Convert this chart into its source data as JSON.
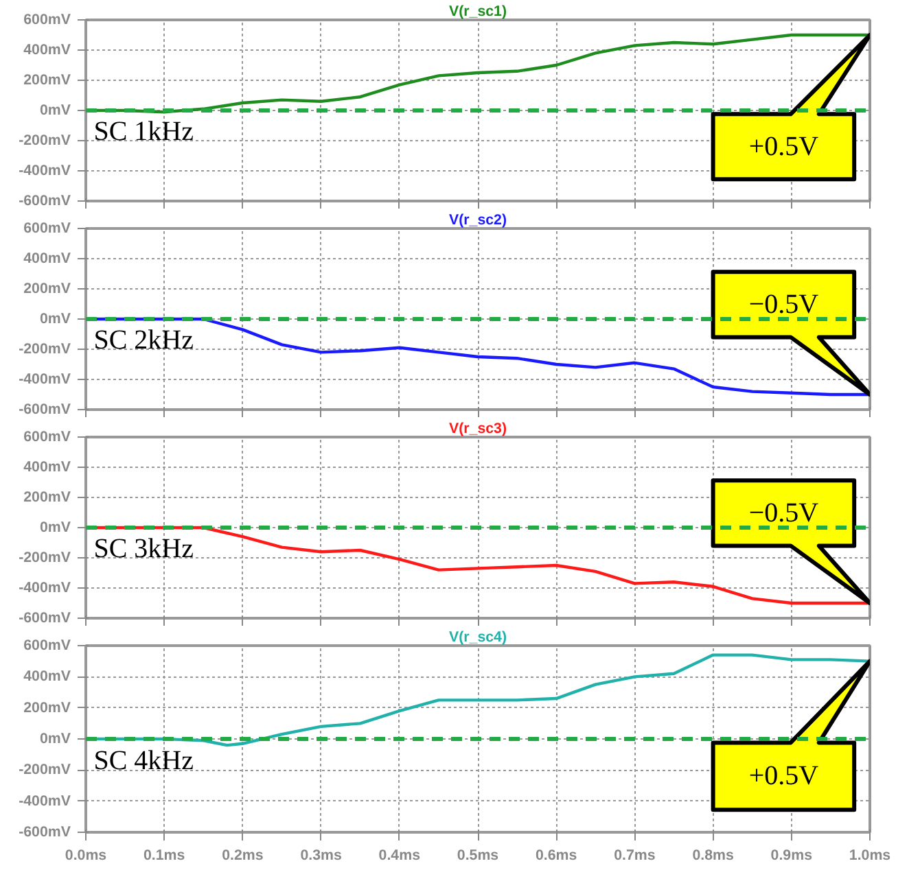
{
  "chart_data": [
    {
      "type": "line",
      "title": "V(r_sc1)",
      "x": [
        0,
        0.05,
        0.1,
        0.15,
        0.2,
        0.25,
        0.3,
        0.35,
        0.4,
        0.45,
        0.5,
        0.55,
        0.6,
        0.65,
        0.7,
        0.75,
        0.8,
        0.85,
        0.9,
        0.95,
        1.0
      ],
      "series": [
        {
          "color": "#1e8c1e",
          "values": [
            0,
            0,
            -10,
            10,
            50,
            70,
            60,
            90,
            170,
            230,
            250,
            260,
            300,
            380,
            430,
            450,
            440,
            470,
            500,
            500,
            500
          ]
        }
      ],
      "xlim": [
        0,
        1.0
      ],
      "xticks": [
        {
          "value": 0,
          "label": null
        },
        {
          "value": 0.1,
          "label": null
        },
        {
          "value": 0.2,
          "label": null
        },
        {
          "value": 0.3,
          "label": null
        },
        {
          "value": 0.4,
          "label": null
        },
        {
          "value": 0.5,
          "label": null
        },
        {
          "value": 0.6,
          "label": null
        },
        {
          "value": 0.7,
          "label": null
        },
        {
          "value": 0.8,
          "label": null
        },
        {
          "value": 0.9,
          "label": null
        },
        {
          "value": 1.0,
          "label": null
        }
      ],
      "ylim": [
        -600,
        600
      ],
      "yticks": [
        {
          "value": -600,
          "label": "-600mV"
        },
        {
          "value": -400,
          "label": "-400mV"
        },
        {
          "value": -200,
          "label": "-200mV"
        },
        {
          "value": 0,
          "label": "0mV"
        },
        {
          "value": 200,
          "label": "200mV"
        },
        {
          "value": 400,
          "label": "400mV"
        },
        {
          "value": 600,
          "label": "600mV"
        }
      ],
      "tick_labels": "y",
      "grid": true,
      "ref_lines": [
        {
          "axis": "y",
          "value": 0,
          "color": "#22aa44",
          "line_style": "dashed"
        }
      ],
      "annotations": [
        "SC 1kHz",
        "+0.5V"
      ]
    },
    {
      "type": "line",
      "title": "V(r_sc2)",
      "x": [
        0,
        0.05,
        0.1,
        0.15,
        0.2,
        0.25,
        0.3,
        0.35,
        0.4,
        0.45,
        0.5,
        0.55,
        0.6,
        0.65,
        0.7,
        0.75,
        0.8,
        0.85,
        0.9,
        0.95,
        1.0
      ],
      "series": [
        {
          "color": "#1a1aff",
          "values": [
            0,
            0,
            0,
            0,
            -70,
            -170,
            -220,
            -210,
            -190,
            -220,
            -250,
            -260,
            -300,
            -320,
            -290,
            -330,
            -450,
            -480,
            -490,
            -500,
            -500
          ]
        }
      ],
      "xlim": [
        0,
        1.0
      ],
      "xticks": [
        {
          "value": 0,
          "label": null
        },
        {
          "value": 0.1,
          "label": null
        },
        {
          "value": 0.2,
          "label": null
        },
        {
          "value": 0.3,
          "label": null
        },
        {
          "value": 0.4,
          "label": null
        },
        {
          "value": 0.5,
          "label": null
        },
        {
          "value": 0.6,
          "label": null
        },
        {
          "value": 0.7,
          "label": null
        },
        {
          "value": 0.8,
          "label": null
        },
        {
          "value": 0.9,
          "label": null
        },
        {
          "value": 1.0,
          "label": null
        }
      ],
      "ylim": [
        -600,
        600
      ],
      "yticks": [
        {
          "value": -600,
          "label": "-600mV"
        },
        {
          "value": -400,
          "label": "-400mV"
        },
        {
          "value": -200,
          "label": "-200mV"
        },
        {
          "value": 0,
          "label": "0mV"
        },
        {
          "value": 200,
          "label": "200mV"
        },
        {
          "value": 400,
          "label": "400mV"
        },
        {
          "value": 600,
          "label": "600mV"
        }
      ],
      "tick_labels": "y",
      "grid": true,
      "ref_lines": [
        {
          "axis": "y",
          "value": 0,
          "color": "#22aa44",
          "line_style": "dashed"
        }
      ],
      "annotations": [
        "SC 2kHz",
        "−0.5V"
      ]
    },
    {
      "type": "line",
      "title": "V(r_sc3)",
      "x": [
        0,
        0.05,
        0.1,
        0.15,
        0.2,
        0.25,
        0.3,
        0.35,
        0.4,
        0.45,
        0.5,
        0.55,
        0.6,
        0.65,
        0.7,
        0.75,
        0.8,
        0.85,
        0.9,
        0.95,
        1.0
      ],
      "series": [
        {
          "color": "#ff1a1a",
          "values": [
            0,
            0,
            0,
            0,
            -60,
            -130,
            -160,
            -150,
            -210,
            -280,
            -270,
            -260,
            -250,
            -290,
            -370,
            -360,
            -390,
            -470,
            -500,
            -500,
            -500
          ]
        }
      ],
      "xlim": [
        0,
        1.0
      ],
      "xticks": [
        {
          "value": 0,
          "label": null
        },
        {
          "value": 0.1,
          "label": null
        },
        {
          "value": 0.2,
          "label": null
        },
        {
          "value": 0.3,
          "label": null
        },
        {
          "value": 0.4,
          "label": null
        },
        {
          "value": 0.5,
          "label": null
        },
        {
          "value": 0.6,
          "label": null
        },
        {
          "value": 0.7,
          "label": null
        },
        {
          "value": 0.8,
          "label": null
        },
        {
          "value": 0.9,
          "label": null
        },
        {
          "value": 1.0,
          "label": null
        }
      ],
      "ylim": [
        -600,
        600
      ],
      "yticks": [
        {
          "value": -600,
          "label": "-600mV"
        },
        {
          "value": -400,
          "label": "-400mV"
        },
        {
          "value": -200,
          "label": "-200mV"
        },
        {
          "value": 0,
          "label": "0mV"
        },
        {
          "value": 200,
          "label": "200mV"
        },
        {
          "value": 400,
          "label": "400mV"
        },
        {
          "value": 600,
          "label": "600mV"
        }
      ],
      "tick_labels": "y",
      "grid": true,
      "ref_lines": [
        {
          "axis": "y",
          "value": 0,
          "color": "#22aa44",
          "line_style": "dashed"
        }
      ],
      "annotations": [
        "SC 3kHz",
        "−0.5V"
      ]
    },
    {
      "type": "line",
      "title": "V(r_sc4)",
      "x": [
        0,
        0.05,
        0.1,
        0.15,
        0.18,
        0.2,
        0.25,
        0.3,
        0.35,
        0.4,
        0.45,
        0.5,
        0.55,
        0.6,
        0.65,
        0.7,
        0.75,
        0.8,
        0.85,
        0.9,
        0.95,
        1.0
      ],
      "series": [
        {
          "color": "#20b2aa",
          "values": [
            0,
            0,
            0,
            -10,
            -40,
            -30,
            30,
            80,
            100,
            180,
            250,
            250,
            250,
            260,
            350,
            400,
            420,
            540,
            540,
            510,
            510,
            500
          ]
        }
      ],
      "xlim": [
        0,
        1.0
      ],
      "xticks": [
        {
          "value": 0,
          "label": "0.0ms"
        },
        {
          "value": 0.1,
          "label": "0.1ms"
        },
        {
          "value": 0.2,
          "label": "0.2ms"
        },
        {
          "value": 0.3,
          "label": "0.3ms"
        },
        {
          "value": 0.4,
          "label": "0.4ms"
        },
        {
          "value": 0.5,
          "label": "0.5ms"
        },
        {
          "value": 0.6,
          "label": "0.6ms"
        },
        {
          "value": 0.7,
          "label": "0.7ms"
        },
        {
          "value": 0.8,
          "label": "0.8ms"
        },
        {
          "value": 0.9,
          "label": "0.9ms"
        },
        {
          "value": 1.0,
          "label": "1.0ms"
        }
      ],
      "ylim": [
        -600,
        600
      ],
      "yticks": [
        {
          "value": -600,
          "label": "-600mV"
        },
        {
          "value": -400,
          "label": "-400mV"
        },
        {
          "value": -200,
          "label": "-200mV"
        },
        {
          "value": 0,
          "label": "0mV"
        },
        {
          "value": 200,
          "label": "200mV"
        },
        {
          "value": 400,
          "label": "400mV"
        },
        {
          "value": 600,
          "label": "600mV"
        }
      ],
      "grid": true,
      "ref_lines": [
        {
          "axis": "y",
          "value": 0,
          "color": "#22aa44",
          "line_style": "dashed"
        }
      ],
      "annotations": [
        "SC 4kHz",
        "+0.5V"
      ]
    }
  ]
}
